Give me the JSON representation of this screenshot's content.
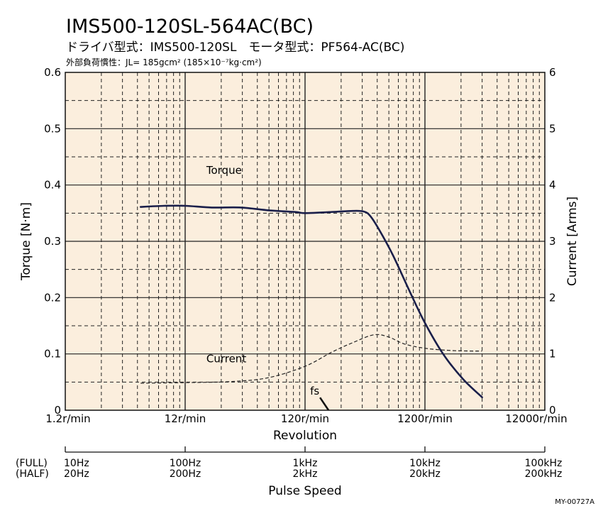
{
  "header": {
    "title": "IMS500-120SL-564AC(BC)",
    "subtitle": "ドライバ型式：IMS500-120SL　モータ型式：PF564-AC(BC)",
    "inertia_note": "外部負荷慣性：JL= 185gcm² (185×10⁻⁷kg·cm²)"
  },
  "figure_code": "MY-00727A",
  "colors": {
    "plot_bg": "#fbeedd",
    "torque": "#1a1f4a",
    "current": "#222222",
    "grid": "#222222"
  },
  "chart_data": {
    "type": "line",
    "xlabel": "Revolution",
    "ylabel": "Torque [N·m]",
    "y2label": "Current [Arms]",
    "xscale": "log",
    "xlim": [
      1.2,
      12000
    ],
    "ylim": [
      0,
      0.6
    ],
    "y2lim": [
      0,
      6
    ],
    "grid": true,
    "x_ticks": [
      "1.2r/min",
      "12r/min",
      "120r/min",
      "1200r/min",
      "12000r/min"
    ],
    "y_ticks": [
      "0",
      "0.1",
      "0.2",
      "0.3",
      "0.4",
      "0.5",
      "0.6"
    ],
    "y2_ticks": [
      "0",
      "1",
      "2",
      "3",
      "4",
      "5",
      "6"
    ],
    "secondary_axis": {
      "label": "Pulse Speed",
      "full_label": "(FULL)",
      "half_label": "(HALF)",
      "full_ticks": [
        "10Hz",
        "100Hz",
        "1kHz",
        "10kHz",
        "100kHz"
      ],
      "half_ticks": [
        "20Hz",
        "200Hz",
        "2kHz",
        "20kHz",
        "200kHz"
      ]
    },
    "series": [
      {
        "name": "Torque",
        "axis": "left",
        "x": [
          5.1,
          8.0,
          12.0,
          20,
          35,
          60,
          100,
          120,
          200,
          300,
          370,
          420,
          500,
          650,
          900,
          1200,
          1700,
          2500,
          3600
        ],
        "y": [
          0.361,
          0.363,
          0.363,
          0.36,
          0.36,
          0.355,
          0.352,
          0.35,
          0.352,
          0.354,
          0.353,
          0.345,
          0.32,
          0.275,
          0.21,
          0.155,
          0.1,
          0.055,
          0.023
        ]
      },
      {
        "name": "Current",
        "axis": "right",
        "x": [
          5.1,
          12,
          30,
          60,
          120,
          200,
          300,
          450,
          600,
          800,
          1200,
          2000,
          3600
        ],
        "y": [
          0.48,
          0.49,
          0.51,
          0.58,
          0.78,
          1.03,
          1.2,
          1.34,
          1.3,
          1.18,
          1.1,
          1.06,
          1.05
        ]
      }
    ],
    "annotations": [
      {
        "text": "Torque",
        "x": 25,
        "y": 0.42
      },
      {
        "text": "Current",
        "x": 25,
        "y": 0.085
      },
      {
        "text": "fs",
        "x": 160,
        "y": 0.025
      }
    ]
  }
}
